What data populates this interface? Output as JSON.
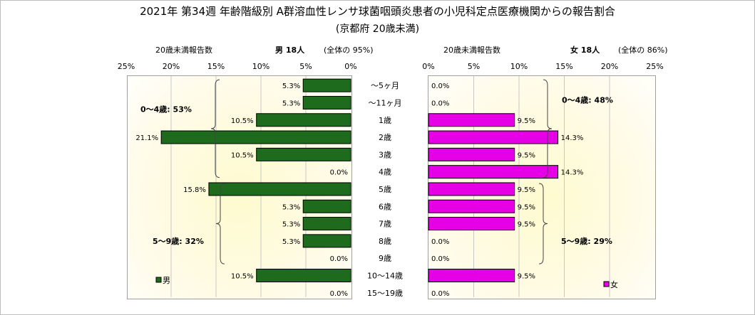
{
  "title": "2021年 第34週 年齢階級別 A群溶血性レンサ球菌咽頭炎患者の小児科定点医療機関からの報告割合",
  "subtitle": "(京都府 20歳未満)",
  "male_header": {
    "count_label": "20歳未満報告数",
    "name": "男  18人",
    "share": "(全体の  95%)"
  },
  "female_header": {
    "count_label": "20歳未満報告数",
    "name": "女  18人",
    "share": "(全体の  86%)"
  },
  "colors": {
    "male": "#1e6b1e",
    "female": "#e600e6"
  },
  "chart_data": [
    {
      "type": "bar",
      "orientation": "horizontal",
      "direction": "right-to-left",
      "categories": [
        "～5ヶ月",
        "～11ヶ月",
        "1歳",
        "2歳",
        "3歳",
        "4歳",
        "5歳",
        "6歳",
        "7歳",
        "8歳",
        "9歳",
        "10～14歳",
        "15～19歳"
      ],
      "series": [
        {
          "name": "男",
          "values": [
            5.3,
            5.3,
            10.5,
            21.1,
            10.5,
            0.0,
            15.8,
            5.3,
            5.3,
            5.3,
            0.0,
            10.5,
            0.0
          ]
        }
      ],
      "data_labels": [
        "5.3%",
        "5.3%",
        "10.5%",
        "21.1%",
        "10.5%",
        "0.0%",
        "15.8%",
        "5.3%",
        "5.3%",
        "5.3%",
        "0.0%",
        "10.5%",
        "0.0%"
      ],
      "xlim": [
        0,
        25
      ],
      "x_ticks": [
        "0%",
        "5%",
        "10%",
        "15%",
        "20%",
        "25%"
      ],
      "grid": "vertical",
      "legend": "bottom-left",
      "annotations": [
        "0～4歳: 53%",
        "5～9歳: 32%"
      ]
    },
    {
      "type": "bar",
      "orientation": "horizontal",
      "direction": "left-to-right",
      "categories": [
        "～5ヶ月",
        "～11ヶ月",
        "1歳",
        "2歳",
        "3歳",
        "4歳",
        "5歳",
        "6歳",
        "7歳",
        "8歳",
        "9歳",
        "10～14歳",
        "15～19歳"
      ],
      "series": [
        {
          "name": "女",
          "values": [
            0.0,
            0.0,
            9.5,
            14.3,
            9.5,
            14.3,
            9.5,
            9.5,
            9.5,
            0.0,
            0.0,
            9.5,
            0.0
          ]
        }
      ],
      "data_labels": [
        "0.0%",
        "0.0%",
        "9.5%",
        "14.3%",
        "9.5%",
        "14.3%",
        "9.5%",
        "9.5%",
        "9.5%",
        "0.0%",
        "0.0%",
        "9.5%",
        "0.0%"
      ],
      "xlim": [
        0,
        25
      ],
      "x_ticks": [
        "0%",
        "5%",
        "10%",
        "15%",
        "20%",
        "25%"
      ],
      "grid": "vertical",
      "legend": "bottom-right",
      "annotations": [
        "0～4歳: 48%",
        "5～9歳: 29%"
      ]
    }
  ]
}
